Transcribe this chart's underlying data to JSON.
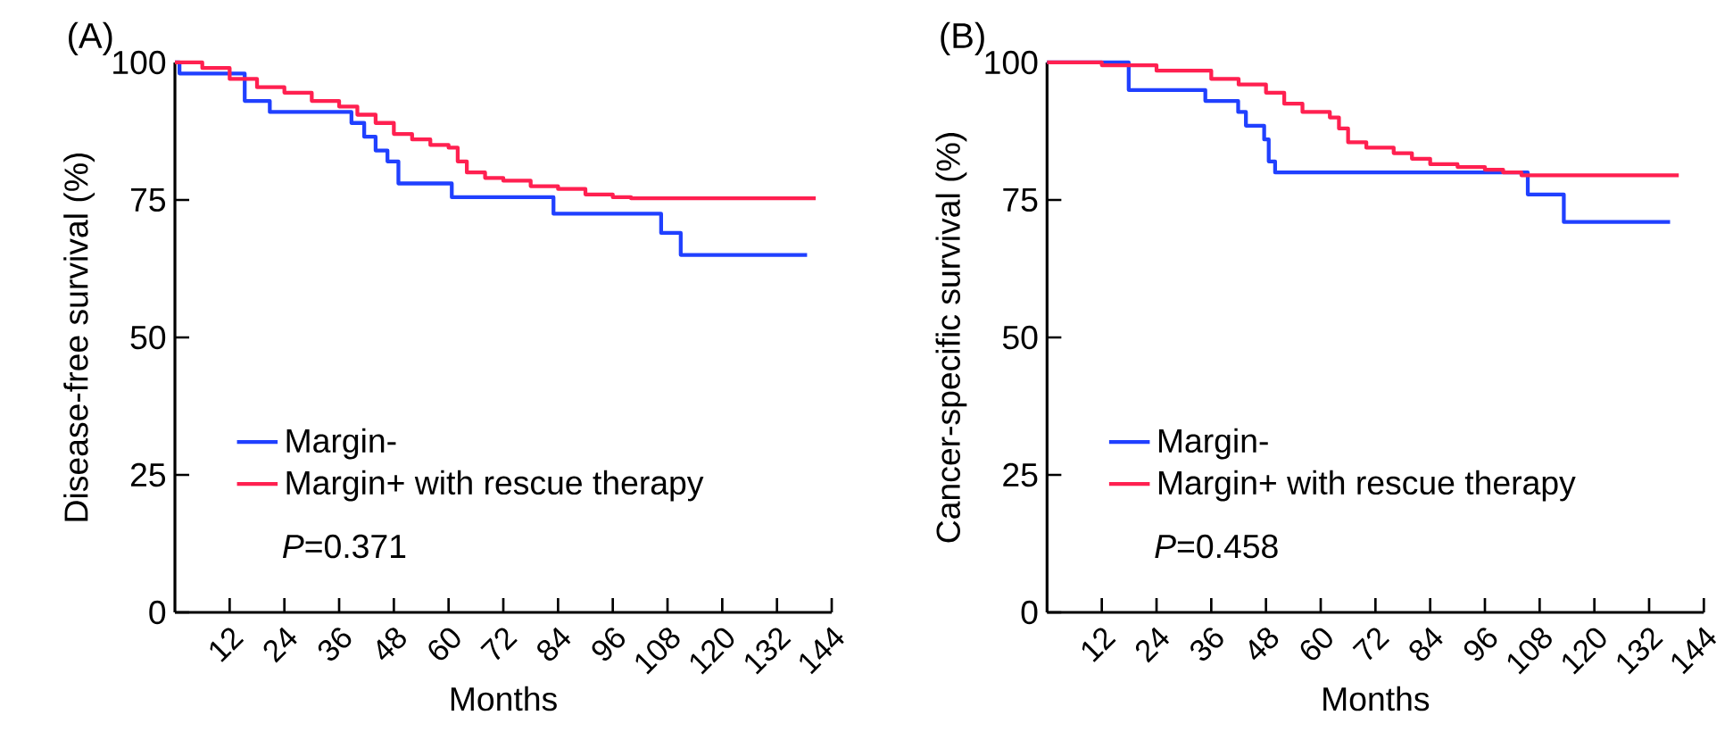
{
  "chart_data": [
    {
      "type": "step",
      "title": "(A)",
      "xlabel": "Months",
      "ylabel": "Disease-free survival (%)",
      "xlim": [
        0,
        144
      ],
      "ylim": [
        0,
        100
      ],
      "xticks": [
        12,
        24,
        36,
        48,
        60,
        72,
        84,
        96,
        108,
        120,
        132,
        144
      ],
      "yticks": [
        0,
        25,
        50,
        75,
        100
      ],
      "legend": "bottom left",
      "annotations": [
        "*P*=0.371"
      ],
      "series": [
        {
          "name": "Margin-",
          "color": "#2040ff",
          "x": [
            0,
            1,
            15.3,
            20.8,
            38.7,
            41.5,
            44,
            46.6,
            49,
            60.7,
            83,
            106.6,
            110.9,
            138.6
          ],
          "values": [
            100,
            98,
            93,
            91,
            89,
            86.5,
            84,
            82,
            78,
            75.5,
            72.5,
            69,
            65,
            65
          ]
        },
        {
          "name": "Margin+ with rescue therapy",
          "color": "#ff2050",
          "x": [
            0,
            6,
            12,
            18,
            24,
            30,
            36,
            40,
            44,
            48,
            52,
            56,
            60,
            62,
            64,
            68,
            72,
            78,
            84,
            90,
            96,
            100,
            140.5
          ],
          "values": [
            100,
            99,
            97,
            95.5,
            94.5,
            93,
            92,
            90.5,
            89,
            87,
            86,
            85,
            84.5,
            82,
            80,
            79,
            78.5,
            77.5,
            77,
            76,
            75.5,
            75.3,
            75.3
          ]
        }
      ]
    },
    {
      "type": "step",
      "title": "(B)",
      "xlabel": "Months",
      "ylabel": "Cancer-specific survival (%)",
      "xlim": [
        0,
        144
      ],
      "ylim": [
        0,
        100
      ],
      "xticks": [
        12,
        24,
        36,
        48,
        60,
        72,
        84,
        96,
        108,
        120,
        132,
        144
      ],
      "yticks": [
        0,
        25,
        50,
        75,
        100
      ],
      "legend": "bottom left",
      "annotations": [
        "*P*=0.458"
      ],
      "series": [
        {
          "name": "Margin-",
          "color": "#2040ff",
          "x": [
            0,
            17.9,
            34.7,
            41.9,
            43.6,
            47.6,
            48.6,
            50,
            105.4,
            113.3,
            136.6
          ],
          "values": [
            100,
            95,
            93,
            91,
            88.5,
            86,
            82,
            80,
            76,
            71,
            71
          ]
        },
        {
          "name": "Margin+ with rescue therapy",
          "color": "#ff2050",
          "x": [
            0,
            12,
            24,
            36,
            42,
            48,
            52,
            56,
            62,
            64,
            66,
            70,
            76,
            80,
            84,
            90,
            96,
            100,
            104,
            138.5
          ],
          "values": [
            100,
            99.5,
            98.5,
            97,
            96,
            94.5,
            92.5,
            91,
            90,
            88,
            85.5,
            84.5,
            83.5,
            82.5,
            81.5,
            81,
            80.5,
            80,
            79.5,
            79.5
          ]
        }
      ]
    }
  ]
}
